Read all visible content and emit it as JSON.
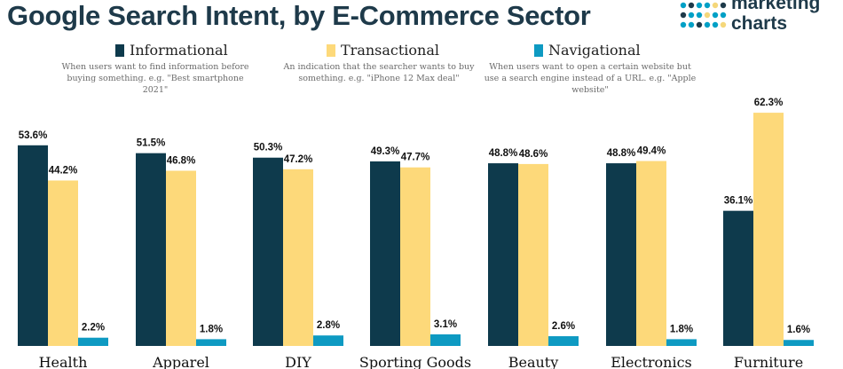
{
  "chart_title": "Google Search Intent, by E-Commerce Sector",
  "logo": {
    "line1": "marketing",
    "line2": "charts",
    "dot_colors": [
      "#00a0c6",
      "#1e3a4a",
      "#f5d77a"
    ]
  },
  "legend": [
    {
      "name": "Informational",
      "color": "#0e3a4c",
      "description": "When users want to find information before buying something. e.g. \"Best smartphone 2021\""
    },
    {
      "name": "Transactional",
      "color": "#fdd97a",
      "description": "An indication that the searcher wants to buy something. e.g. \"iPhone 12 Max deal\""
    },
    {
      "name": "Navigational",
      "color": "#0e9ac2",
      "description": "When users want to open a certain website but use a search engine instead of a URL. e.g. \"Apple website\""
    }
  ],
  "chart_data": {
    "type": "bar",
    "title": "Google Search Intent, by E-Commerce Sector",
    "xlabel": "",
    "ylabel": "",
    "ylim": [
      0,
      65
    ],
    "grid": false,
    "legend_position": "top",
    "value_suffix": "%",
    "categories": [
      "Health",
      "Apparel",
      "DIY",
      "Sporting Goods",
      "Beauty",
      "Electronics",
      "Furniture"
    ],
    "series": [
      {
        "name": "Informational",
        "color": "#0e3a4c",
        "values": [
          53.6,
          51.5,
          50.3,
          49.3,
          48.8,
          48.8,
          36.1
        ]
      },
      {
        "name": "Transactional",
        "color": "#fdd97a",
        "values": [
          44.2,
          46.8,
          47.2,
          47.7,
          48.6,
          49.4,
          62.3
        ]
      },
      {
        "name": "Navigational",
        "color": "#0e9ac2",
        "values": [
          2.2,
          1.8,
          2.8,
          3.1,
          2.6,
          1.8,
          1.6
        ]
      }
    ]
  }
}
